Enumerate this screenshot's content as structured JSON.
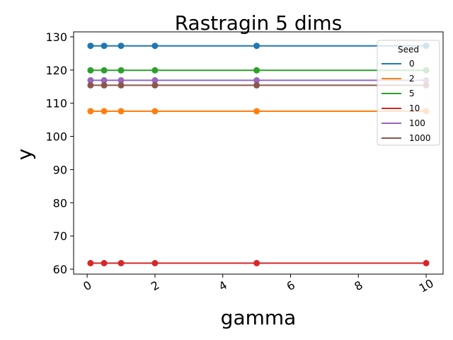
{
  "chart_data": {
    "type": "line",
    "title": "Rastragin 5 dims",
    "xlabel": "gamma",
    "ylabel": "y",
    "x": [
      0.1,
      0.5,
      1,
      2,
      5,
      10
    ],
    "xlim": [
      -0.4,
      10.5
    ],
    "ylim": [
      58.5,
      131.5
    ],
    "xticks": [
      0,
      2,
      4,
      6,
      8,
      10
    ],
    "xtick_labels": [
      "0",
      "2",
      "4",
      "6",
      "8",
      "10"
    ],
    "yticks": [
      60,
      70,
      80,
      90,
      100,
      110,
      120,
      130
    ],
    "ytick_labels": [
      "60",
      "70",
      "80",
      "90",
      "100",
      "110",
      "120",
      "130"
    ],
    "grid": false,
    "legend": {
      "title": "Seed",
      "placement": "top-right"
    },
    "series": [
      {
        "name": "0",
        "color": "#1f77b4",
        "values": [
          127.3,
          127.3,
          127.3,
          127.3,
          127.3,
          127.3
        ]
      },
      {
        "name": "2",
        "color": "#ff7f0e",
        "values": [
          107.6,
          107.6,
          107.6,
          107.6,
          107.6,
          107.6
        ]
      },
      {
        "name": "5",
        "color": "#2ca02c",
        "values": [
          119.9,
          119.9,
          119.9,
          119.9,
          119.9,
          119.9
        ]
      },
      {
        "name": "10",
        "color": "#d62728",
        "values": [
          61.8,
          61.8,
          61.8,
          61.8,
          61.8,
          61.8
        ]
      },
      {
        "name": "100",
        "color": "#9467bd",
        "values": [
          116.9,
          116.9,
          116.9,
          116.9,
          116.9,
          116.9
        ]
      },
      {
        "name": "1000",
        "color": "#8c564b",
        "values": [
          115.4,
          115.4,
          115.4,
          115.4,
          115.4,
          115.4
        ]
      }
    ]
  }
}
